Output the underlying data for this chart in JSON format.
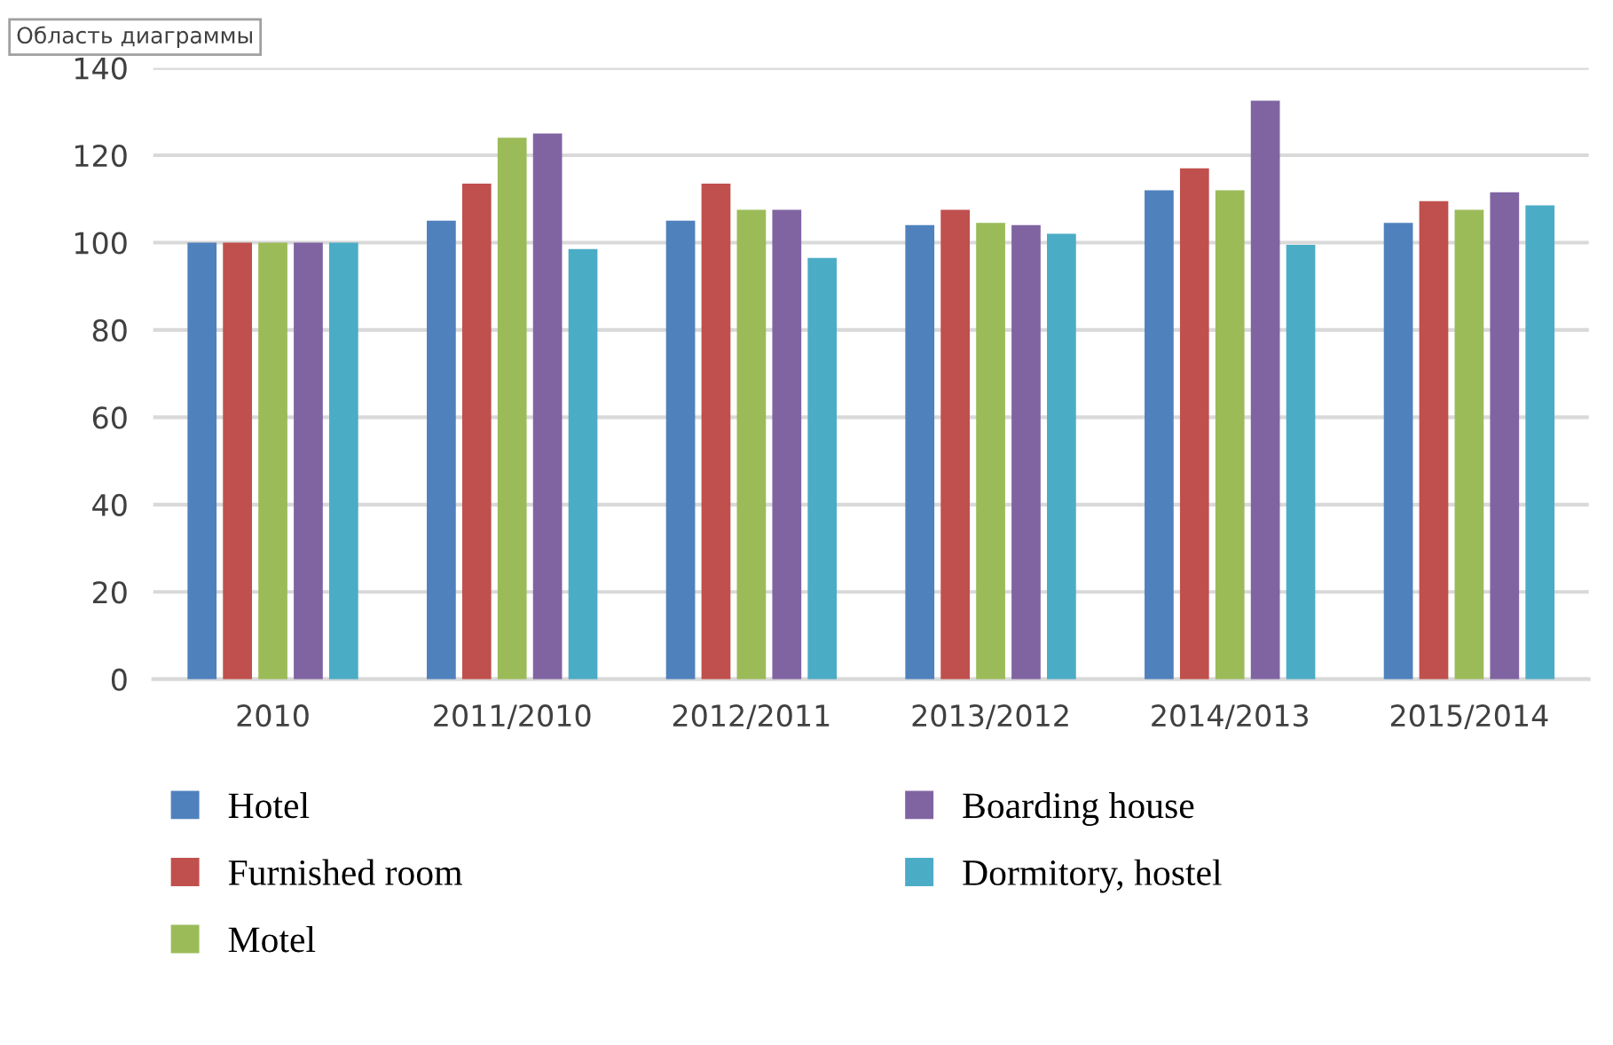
{
  "chart_data": {
    "type": "bar",
    "categories": [
      "2010",
      "2011/2010",
      "2012/2011",
      "2013/2012",
      "2014/2013",
      "2015/2014"
    ],
    "series": [
      {
        "name": "Hotel",
        "color": "#4f81bd",
        "values": [
          100,
          105,
          105,
          104,
          112,
          104.5
        ]
      },
      {
        "name": "Furnished room",
        "color": "#c0504d",
        "values": [
          100,
          113.5,
          113.5,
          107.5,
          117,
          109.5
        ]
      },
      {
        "name": "Motel",
        "color": "#9bbb59",
        "values": [
          100,
          124,
          107.5,
          104.5,
          112,
          107.5
        ]
      },
      {
        "name": "Boarding house",
        "color": "#8064a2",
        "values": [
          100,
          125,
          107.5,
          104,
          132.5,
          111.5
        ]
      },
      {
        "name": "Dormitory, hostel",
        "color": "#4bacc6",
        "values": [
          100,
          98.5,
          96.5,
          102,
          99.5,
          108.5
        ]
      }
    ],
    "ylim": [
      0,
      140
    ],
    "yticks": [
      0,
      20,
      40,
      60,
      80,
      100,
      120,
      140
    ],
    "grid": "y",
    "legend": "bottom",
    "annotations": [
      "Область диаграммы"
    ]
  }
}
